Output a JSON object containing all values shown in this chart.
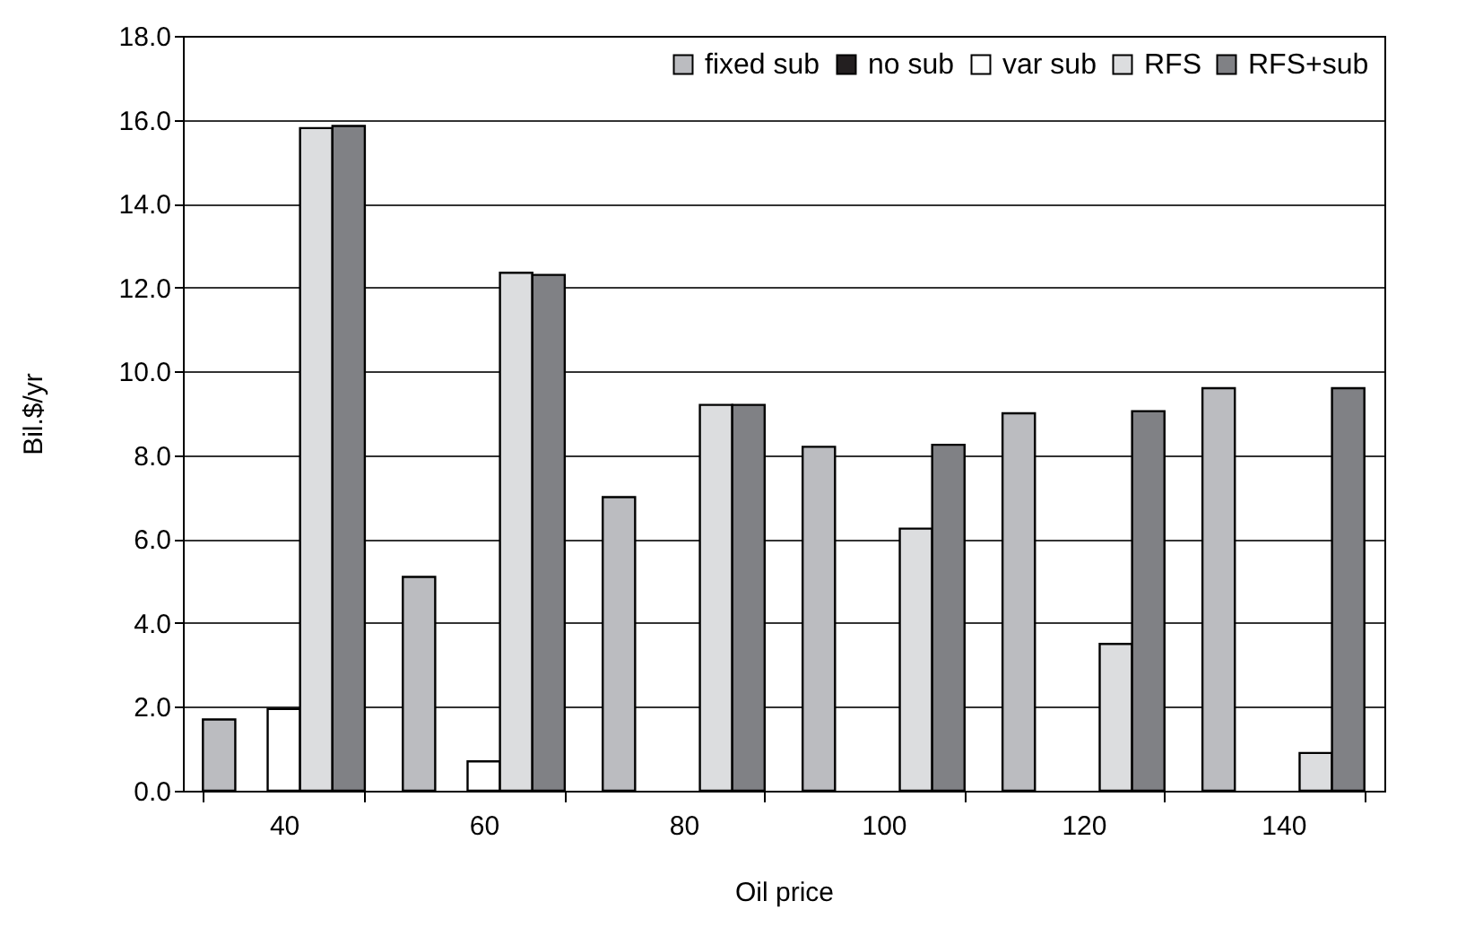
{
  "chart_data": {
    "type": "bar",
    "xlabel": "Oil price",
    "ylabel": "Bil.$/yr",
    "categories": [
      "40",
      "60",
      "80",
      "100",
      "120",
      "140"
    ],
    "series": [
      {
        "name": "fixed sub",
        "color": "#bbbcc0",
        "values": [
          1.7,
          5.1,
          7.0,
          8.2,
          9.0,
          9.6
        ]
      },
      {
        "name": "no sub",
        "color": "#231f20",
        "values": [
          null,
          null,
          null,
          null,
          null,
          null
        ]
      },
      {
        "name": "var sub",
        "color": "#ffffff",
        "values": [
          1.95,
          0.7,
          null,
          null,
          null,
          null
        ]
      },
      {
        "name": "RFS",
        "color": "#dcdddf",
        "values": [
          15.8,
          12.35,
          9.2,
          6.25,
          3.5,
          0.9
        ]
      },
      {
        "name": "RFS+sub",
        "color": "#808185",
        "values": [
          15.85,
          12.3,
          9.2,
          8.25,
          9.05,
          9.6
        ]
      }
    ],
    "ylim": [
      0,
      18
    ],
    "yticks": [
      {
        "value": 0,
        "label": "0.0"
      },
      {
        "value": 2,
        "label": "2.0"
      },
      {
        "value": 4,
        "label": "4.0"
      },
      {
        "value": 6,
        "label": "6.0"
      },
      {
        "value": 8,
        "label": "8.0"
      },
      {
        "value": 10,
        "label": "10.0"
      },
      {
        "value": 12,
        "label": "12.0"
      },
      {
        "value": 14,
        "label": "14.0"
      },
      {
        "value": 16,
        "label": "16.0"
      },
      {
        "value": 18,
        "label": "18.0"
      }
    ],
    "grid": "y",
    "legend": "top right"
  }
}
